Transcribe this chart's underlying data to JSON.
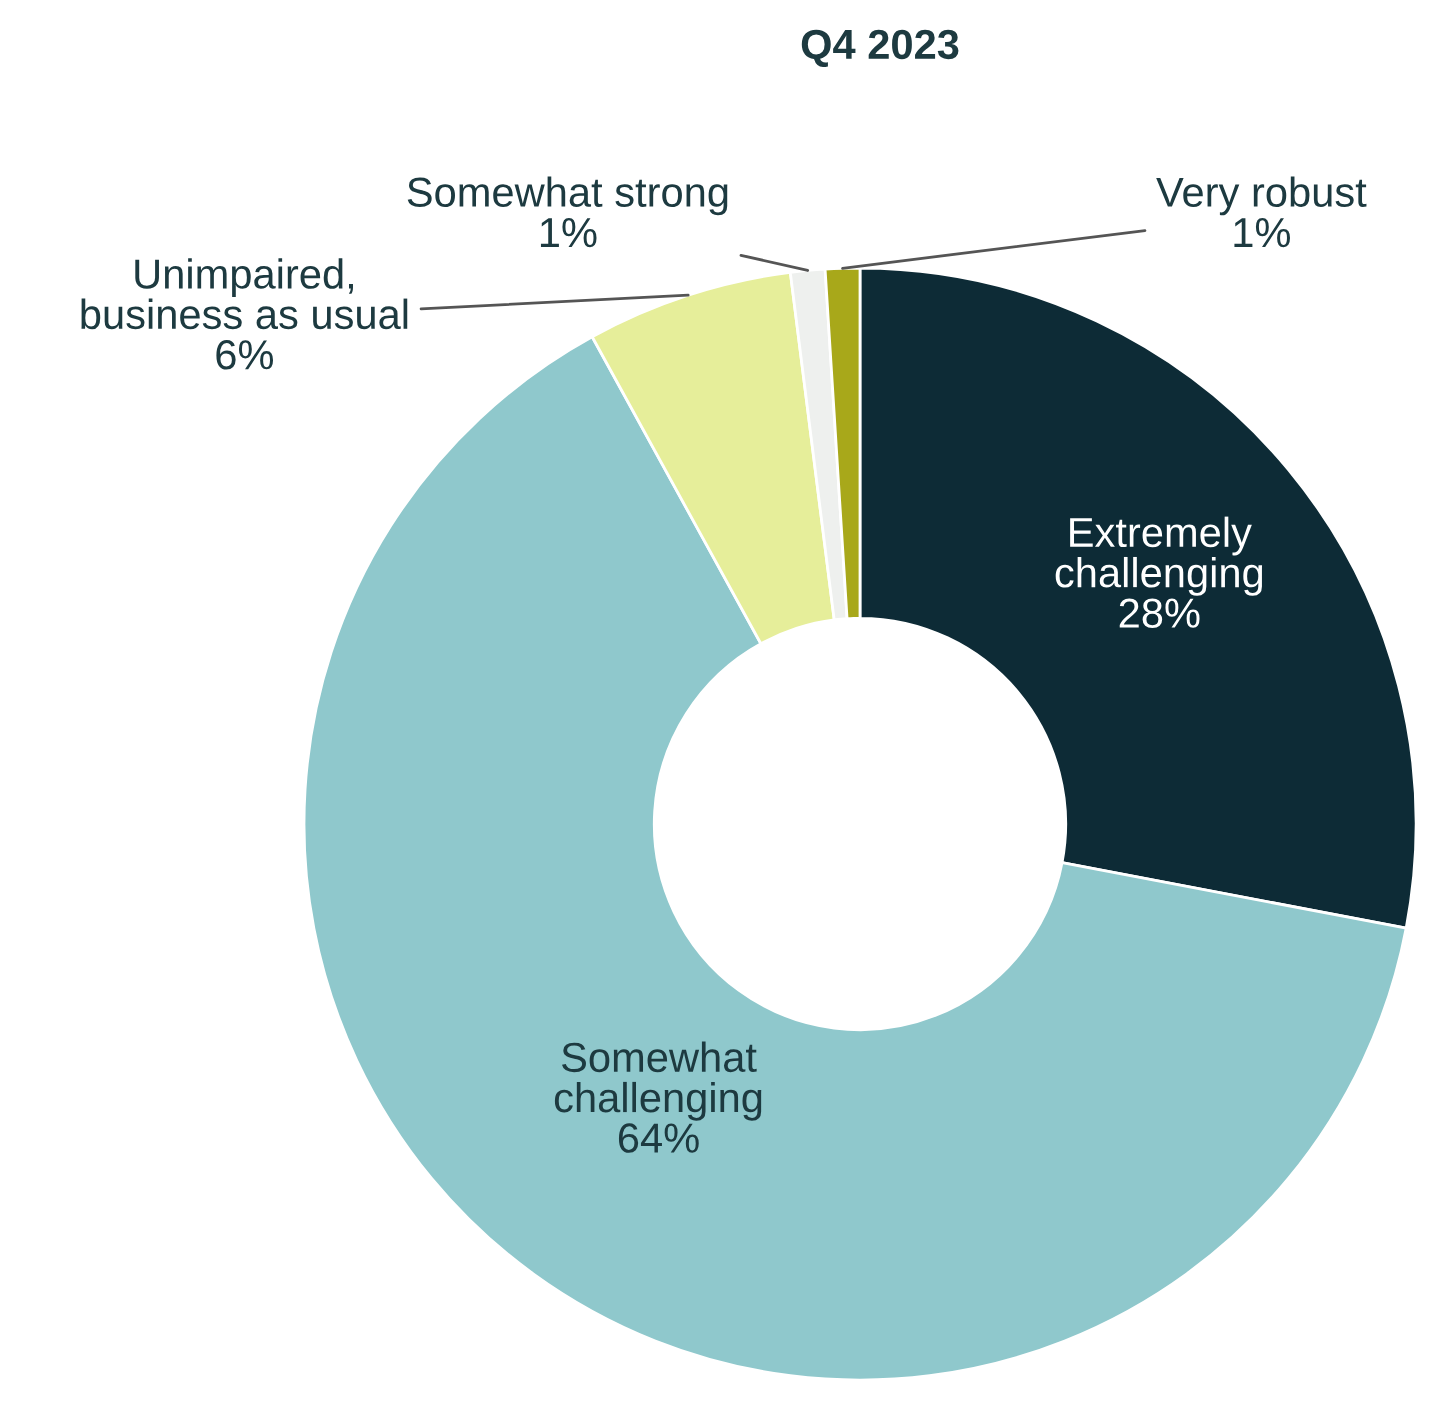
{
  "chart_data": {
    "type": "donut",
    "title": "Q4 2023",
    "categories": [
      "Extremely challenging",
      "Somewhat challenging",
      "Unimpaired, business as usual",
      "Somewhat strong",
      "Very robust"
    ],
    "values": [
      28,
      64,
      6,
      1,
      1
    ],
    "colors": [
      "#0d2b36",
      "#8fc8cc",
      "#e6ee9a",
      "#eef0ee",
      "#a8a81a"
    ],
    "value_labels": [
      "28%",
      "64%",
      "6%",
      "1%",
      "1%"
    ]
  }
}
